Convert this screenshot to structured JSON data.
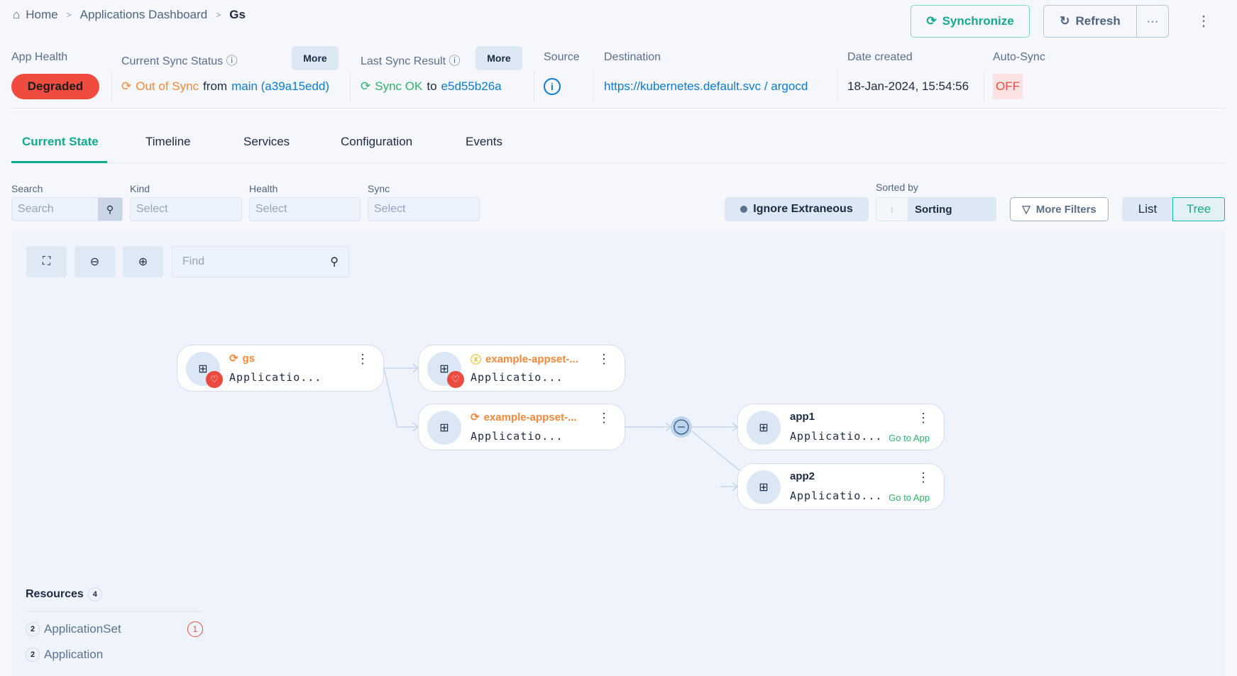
{
  "breadcrumb": {
    "home": "Home",
    "dashboard": "Applications Dashboard",
    "current": "Gs"
  },
  "actions": {
    "synchronize": "Synchronize",
    "refresh": "Refresh",
    "more": "···",
    "kebab": "⋮"
  },
  "summary": {
    "app_health": {
      "label": "App Health",
      "value": "Degraded"
    },
    "current_sync": {
      "label": "Current Sync Status",
      "more": "More",
      "status": "Out of Sync",
      "from": "from",
      "revision": "main (a39a15edd)"
    },
    "last_sync": {
      "label": "Last Sync Result",
      "more": "More",
      "status": "Sync OK",
      "to": "to",
      "revision": "e5d55b26a"
    },
    "source": {
      "label": "Source"
    },
    "destination": {
      "label": "Destination",
      "value": "https://kubernetes.default.svc / argocd"
    },
    "date_created": {
      "label": "Date created",
      "value": "18-Jan-2024, 15:54:56"
    },
    "auto_sync": {
      "label": "Auto-Sync",
      "value": "OFF"
    }
  },
  "tabs": [
    {
      "label": "Current State",
      "active": true
    },
    {
      "label": "Timeline"
    },
    {
      "label": "Services"
    },
    {
      "label": "Configuration"
    },
    {
      "label": "Events"
    }
  ],
  "filters": {
    "search": {
      "label": "Search",
      "placeholder": "Search"
    },
    "kind": {
      "label": "Kind",
      "placeholder": "Select"
    },
    "health": {
      "label": "Health",
      "placeholder": "Select"
    },
    "sync": {
      "label": "Sync",
      "placeholder": "Select"
    },
    "ignore_extraneous": "Ignore Extraneous",
    "sorted_by": {
      "label": "Sorted by",
      "value": "Sorting"
    },
    "more_filters": "More Filters",
    "view": {
      "list": "List",
      "tree": "Tree",
      "selected": "Tree"
    }
  },
  "graph": {
    "find_placeholder": "Find",
    "nodes": [
      {
        "name": "gs",
        "kind": "Applicatio...",
        "status": "out-of-sync",
        "health": "degraded"
      },
      {
        "name": "example-appset-...",
        "kind": "Applicatio...",
        "status": "unknown",
        "health": "degraded"
      },
      {
        "name": "example-appset-...",
        "kind": "Applicatio...",
        "status": "out-of-sync"
      },
      {
        "name": "app1",
        "kind": "Applicatio...",
        "link": "Go to App"
      },
      {
        "name": "app2",
        "kind": "Applicatio...",
        "link": "Go to App"
      }
    ]
  },
  "resources": {
    "title": "Resources",
    "count": "4",
    "items": [
      {
        "count": "2",
        "name": "ApplicationSet",
        "errors": "1"
      },
      {
        "count": "2",
        "name": "Application"
      }
    ]
  },
  "colors": {
    "accent": "#14b8a6",
    "degraded": "#ef4c3f",
    "out_of_sync": "#f5883a",
    "sync_ok": "#2db36b",
    "link": "#0b7bd4"
  }
}
